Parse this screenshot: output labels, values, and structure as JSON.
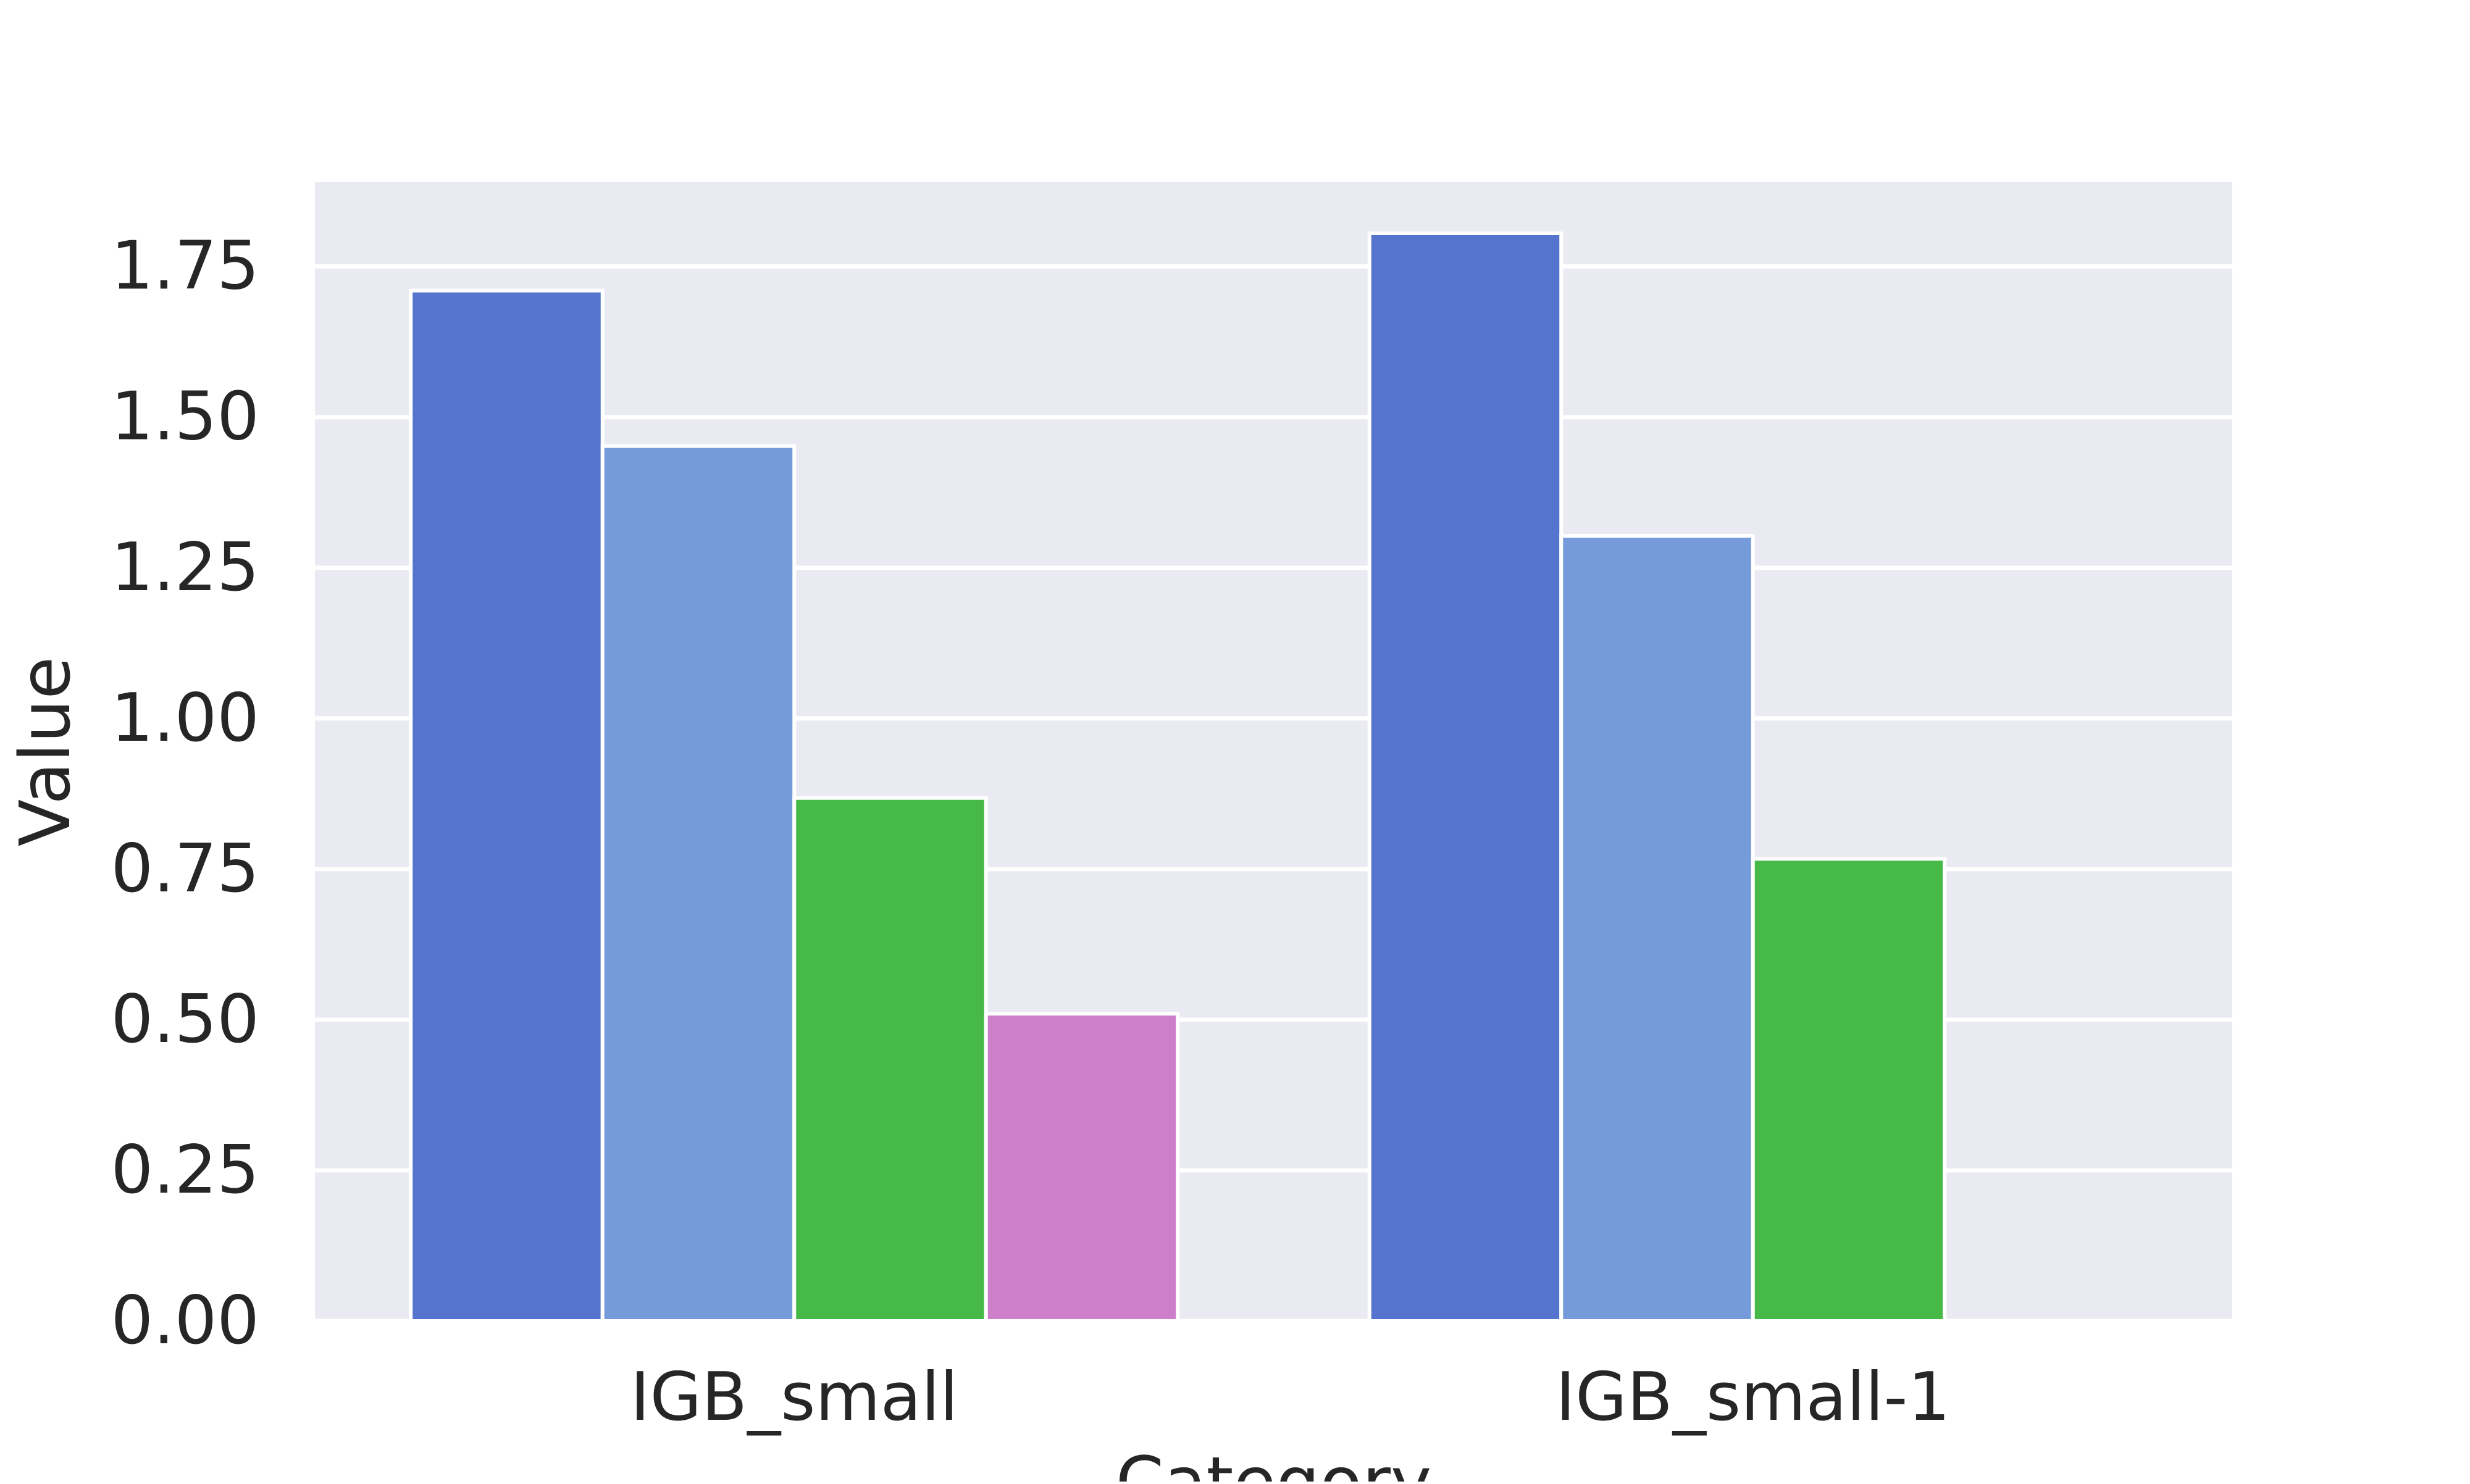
{
  "chart_data": {
    "type": "bar",
    "categories": [
      "IGB_small",
      "IGB_small-1"
    ],
    "series": [
      {
        "values": [
          1.71,
          1.805
        ],
        "color": "#5574cd"
      },
      {
        "values": [
          1.452,
          1.303
        ],
        "color": "#769bdb"
      },
      {
        "values": [
          0.868,
          0.767
        ],
        "color": "#47b946"
      },
      {
        "values": [
          0.51,
          0.0
        ],
        "color": "#cd7fc9"
      }
    ],
    "title": "",
    "xlabel": "Category",
    "ylabel": "Value",
    "ylim": [
      0,
      1.89
    ],
    "yticks": [
      0.0,
      0.25,
      0.5,
      0.75,
      1.0,
      1.25,
      1.5,
      1.75
    ],
    "ytick_labels": [
      "0.00",
      "0.25",
      "0.50",
      "0.75",
      "1.00",
      "1.25",
      "1.50",
      "1.75"
    ],
    "grid": true,
    "legend": "none",
    "colors": {
      "plot_background": "#eaeaf2",
      "grid": "#ffffff",
      "text": "#262626"
    }
  }
}
